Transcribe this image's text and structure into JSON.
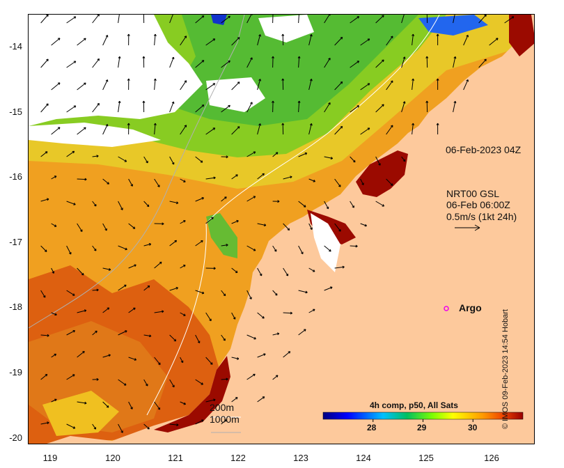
{
  "map": {
    "lon_range": [
      118.6,
      126.7
    ],
    "lat_range": [
      -20.1,
      -13.5
    ],
    "x_ticks": [
      "119",
      "120",
      "121",
      "122",
      "123",
      "124",
      "125",
      "126"
    ],
    "y_ticks": [
      "-14",
      "-15",
      "-16",
      "-17",
      "-18",
      "-19",
      "-20"
    ],
    "land_color": "#fdc99c",
    "no_data_color": "#ffffff"
  },
  "annotations": {
    "sat_time": "06-Feb-2023 04Z",
    "current_source": "NRT00 GSL",
    "current_time": "06-Feb 06:00Z",
    "vector_scale": "0.5m/s (1kt 24h)",
    "argo_label": "Argo",
    "isobath_200": "200m",
    "isobath_1000": "1000m"
  },
  "colorbar": {
    "title": "4h comp, p50, All Sats",
    "ticks": [
      "28",
      "29",
      "30"
    ],
    "tick_values": [
      28,
      29,
      30
    ],
    "range": [
      27,
      31
    ]
  },
  "credit": "© IMOS 09-Feb-2023 14:54 Hobart"
}
